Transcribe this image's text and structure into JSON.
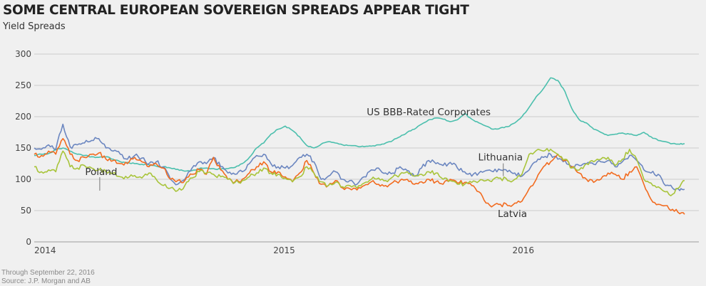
{
  "header": {
    "title": "SOME CENTRAL EUROPEAN SOVEREIGN SPREADS APPEAR TIGHT",
    "subtitle": "Yield Spreads"
  },
  "footer": {
    "note": "Through September 22, 2016",
    "source": "Source: J.P. Morgan and AB"
  },
  "chart_data": {
    "type": "line",
    "title": "SOME CENTRAL EUROPEAN SOVEREIGN SPREADS APPEAR TIGHT",
    "subtitle": "Yield Spreads",
    "xlabel": "",
    "ylabel": "",
    "ylim": [
      0,
      300
    ],
    "xlim": [
      2014.0,
      2016.73
    ],
    "yticks": [
      0,
      50,
      100,
      150,
      200,
      250,
      300
    ],
    "ytick_labels": [
      "0",
      "50",
      "100",
      "150",
      "200",
      "250",
      "300"
    ],
    "xticks": [
      2014,
      2015,
      2016
    ],
    "xtick_labels": [
      "2014",
      "2015",
      "2016"
    ],
    "grid": true,
    "legend": "none (direct labels)",
    "annotations": [
      {
        "text": "US BBB-Rated Corporates",
        "series": "US BBB-Rated Corporates",
        "x": 2015.65,
        "y": 202
      },
      {
        "text": "Lithuania",
        "series": "Lithuania",
        "x": 2015.95,
        "y": 130,
        "pointer": true
      },
      {
        "text": "Poland",
        "series": "Poland",
        "x": 2014.28,
        "y": 107,
        "pointer": true
      },
      {
        "text": "Latvia",
        "series": "Latvia",
        "x": 2016.0,
        "y": 40
      }
    ],
    "x": [
      2014.0,
      2014.03,
      2014.06,
      2014.09,
      2014.12,
      2014.15,
      2014.18,
      2014.21,
      2014.24,
      2014.27,
      2014.3,
      2014.33,
      2014.36,
      2014.39,
      2014.42,
      2014.45,
      2014.48,
      2014.51,
      2014.54,
      2014.57,
      2014.6,
      2014.63,
      2014.66,
      2014.69,
      2014.72,
      2014.75,
      2014.78,
      2014.81,
      2014.84,
      2014.87,
      2014.9,
      2014.93,
      2014.96,
      2014.99,
      2015.02,
      2015.05,
      2015.08,
      2015.11,
      2015.14,
      2015.17,
      2015.2,
      2015.23,
      2015.26,
      2015.29,
      2015.32,
      2015.35,
      2015.38,
      2015.41,
      2015.44,
      2015.47,
      2015.5,
      2015.53,
      2015.56,
      2015.59,
      2015.62,
      2015.65,
      2015.68,
      2015.71,
      2015.74,
      2015.77,
      2015.8,
      2015.83,
      2015.86,
      2015.89,
      2015.92,
      2015.95,
      2015.98,
      2016.01,
      2016.04,
      2016.07,
      2016.1,
      2016.13,
      2016.16,
      2016.19,
      2016.22,
      2016.25,
      2016.28,
      2016.31,
      2016.34,
      2016.37,
      2016.4,
      2016.43,
      2016.46,
      2016.49,
      2016.52,
      2016.55,
      2016.58,
      2016.61,
      2016.64,
      2016.67,
      2016.7,
      2016.72
    ],
    "series": [
      {
        "name": "US BBB-Rated Corporates",
        "color": "#4bbfad",
        "values": [
          138,
          140,
          141,
          147,
          150,
          145,
          140,
          138,
          136,
          135,
          136,
          132,
          128,
          127,
          125,
          124,
          123,
          121,
          120,
          118,
          116,
          113,
          114,
          117,
          118,
          117,
          116,
          117,
          119,
          125,
          135,
          150,
          158,
          172,
          180,
          185,
          178,
          168,
          154,
          150,
          156,
          160,
          158,
          155,
          154,
          153,
          152,
          153,
          155,
          158,
          162,
          168,
          175,
          180,
          188,
          195,
          198,
          196,
          192,
          195,
          205,
          196,
          190,
          185,
          180,
          182,
          184,
          190,
          200,
          215,
          232,
          245,
          262,
          258,
          240,
          212,
          195,
          190,
          180,
          175,
          170,
          172,
          174,
          172,
          170,
          175,
          168,
          162,
          160,
          157,
          156,
          157
        ]
      },
      {
        "name": "Lithuania",
        "color": "#6b86c0",
        "values": [
          150,
          148,
          155,
          148,
          188,
          152,
          155,
          158,
          162,
          165,
          150,
          145,
          140,
          132,
          138,
          134,
          125,
          128,
          120,
          100,
          92,
          100,
          118,
          128,
          125,
          135,
          120,
          110,
          108,
          112,
          125,
          138,
          140,
          125,
          120,
          118,
          122,
          135,
          140,
          128,
          100,
          105,
          112,
          100,
          98,
          92,
          104,
          115,
          118,
          110,
          110,
          120,
          114,
          105,
          118,
          130,
          125,
          122,
          127,
          118,
          112,
          105,
          110,
          114,
          112,
          115,
          112,
          110,
          105,
          115,
          128,
          135,
          140,
          132,
          130,
          120,
          122,
          125,
          124,
          128,
          130,
          120,
          128,
          138,
          130,
          115,
          110,
          108,
          90,
          86,
          82,
          84
        ]
      },
      {
        "name": "Latvia",
        "color": "#f26b1f",
        "values": [
          140,
          138,
          145,
          140,
          165,
          140,
          130,
          135,
          140,
          142,
          132,
          130,
          125,
          125,
          135,
          128,
          120,
          125,
          118,
          100,
          98,
          98,
          108,
          115,
          108,
          135,
          115,
          100,
          96,
          100,
          110,
          120,
          128,
          112,
          112,
          104,
          96,
          110,
          130,
          110,
          92,
          90,
          98,
          86,
          85,
          83,
          90,
          96,
          92,
          90,
          95,
          98,
          100,
          92,
          96,
          100,
          96,
          92,
          100,
          94,
          95,
          90,
          80,
          62,
          58,
          60,
          58,
          62,
          65,
          85,
          100,
          120,
          128,
          140,
          130,
          120,
          110,
          100,
          95,
          100,
          110,
          108,
          100,
          112,
          120,
          92,
          68,
          60,
          58,
          52,
          45,
          44
        ]
      },
      {
        "name": "Poland",
        "color": "#a8c43a",
        "values": [
          120,
          112,
          115,
          112,
          145,
          120,
          118,
          122,
          118,
          115,
          112,
          110,
          104,
          102,
          106,
          102,
          110,
          100,
          90,
          86,
          82,
          90,
          102,
          112,
          110,
          108,
          104,
          100,
          95,
          98,
          104,
          110,
          118,
          110,
          108,
          102,
          96,
          104,
          120,
          110,
          96,
          90,
          95,
          88,
          90,
          86,
          94,
          100,
          102,
          98,
          104,
          108,
          112,
          105,
          108,
          112,
          110,
          100,
          98,
          92,
          92,
          95,
          97,
          98,
          100,
          102,
          98,
          100,
          108,
          140,
          146,
          145,
          148,
          140,
          132,
          118,
          115,
          125,
          128,
          132,
          135,
          122,
          132,
          148,
          132,
          100,
          94,
          88,
          80,
          76,
          88,
          98
        ]
      }
    ]
  }
}
